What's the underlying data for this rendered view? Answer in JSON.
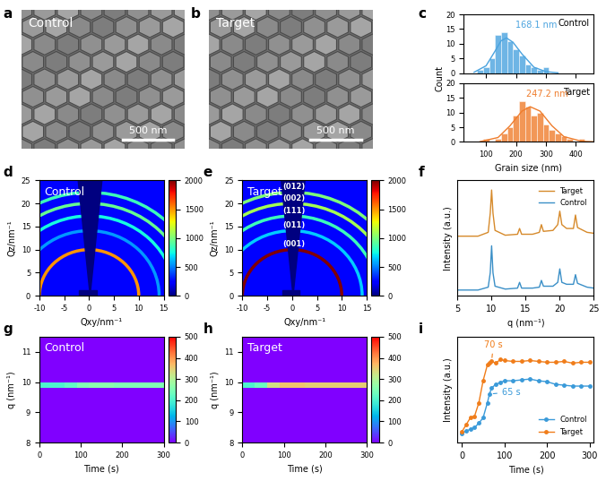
{
  "chart_data": [
    {
      "panel_label": "a",
      "type": "image",
      "title": "Control",
      "scale_bar": "500 nm"
    },
    {
      "panel_label": "b",
      "type": "image",
      "title": "Target",
      "scale_bar": "500 nm"
    },
    {
      "panel_label": "c",
      "type": "histogram",
      "xlabel": "Grain size (nm)",
      "ylabel": "Count",
      "xlim": [
        25,
        460
      ],
      "xticks": [
        100,
        200,
        300,
        400
      ],
      "ylim": [
        0,
        20
      ],
      "yticks": [
        0,
        5,
        10,
        15,
        20
      ],
      "series": [
        {
          "name": "Control",
          "color": "#4aa3df",
          "annotation": "168.1 nm",
          "bins": [
            70,
            90,
            110,
            130,
            150,
            170,
            190,
            210,
            230,
            250,
            270,
            290,
            310
          ],
          "counts": [
            1,
            2,
            5,
            13,
            14,
            11,
            8,
            6,
            3,
            2,
            1,
            2
          ],
          "fit": {
            "x": [
              60,
              100,
              130,
              150,
              168.1,
              190,
              220,
              260,
              300,
              340
            ],
            "y": [
              0.3,
              2.5,
              7.5,
              11,
              12,
              10.5,
              6.5,
              2,
              0.5,
              0.1
            ]
          }
        },
        {
          "name": "Target",
          "color": "#ef7d2d",
          "annotation": "247.2 nm",
          "bins": [
            90,
            110,
            130,
            150,
            170,
            190,
            210,
            230,
            250,
            270,
            290,
            310,
            330,
            350,
            370,
            390,
            410,
            430
          ],
          "counts": [
            1,
            0,
            1,
            3,
            5,
            9,
            14,
            12,
            9,
            10,
            6,
            4,
            3,
            2,
            1,
            0,
            1
          ],
          "fit": {
            "x": [
              80,
              140,
              180,
              220,
              247.2,
              280,
              320,
              360,
              420,
              460
            ],
            "y": [
              0.1,
              1.5,
              5.5,
              10.5,
              12,
              10.5,
              5.5,
              1.8,
              0.2,
              0.05
            ]
          }
        }
      ]
    },
    {
      "panel_label": "d",
      "type": "giwaxs",
      "title": "Control",
      "xlabel": "Qxy/nm⁻¹",
      "ylabel": "Qz/nm⁻¹",
      "xlim": [
        -10,
        15
      ],
      "xticks": [
        -10,
        -5,
        0,
        5,
        10,
        15
      ],
      "ylim": [
        0,
        25
      ],
      "yticks": [
        0,
        5,
        10,
        15,
        20,
        25
      ],
      "background": 250,
      "data_labels": false,
      "colorbar": {
        "range": [
          0,
          2000
        ],
        "ticks": [
          0,
          500,
          1000,
          1500,
          2000
        ]
      },
      "rings": [
        {
          "q": 10.0,
          "intensity": 1500
        },
        {
          "q": 14.1,
          "intensity": 550
        },
        {
          "q": 17.3,
          "intensity": 750
        },
        {
          "q": 20.0,
          "intensity": 950
        },
        {
          "q": 22.4,
          "intensity": 850
        }
      ]
    },
    {
      "panel_label": "e",
      "type": "giwaxs",
      "title": "Target",
      "xlabel": "Qxy/nm⁻¹",
      "ylabel": "Qz/nm⁻¹",
      "xlim": [
        -10,
        15
      ],
      "xticks": [
        -10,
        -5,
        0,
        5,
        10,
        15
      ],
      "ylim": [
        0,
        25
      ],
      "yticks": [
        0,
        5,
        10,
        15,
        20,
        25
      ],
      "background": 250,
      "data_labels": true,
      "colorbar": {
        "range": [
          0,
          2000
        ],
        "ticks": [
          0,
          500,
          1000,
          1500,
          2000
        ]
      },
      "rings": [
        {
          "label": "(001)",
          "q": 10.0,
          "intensity": 2000
        },
        {
          "label": "(011)",
          "q": 14.1,
          "intensity": 650
        },
        {
          "label": "(111)",
          "q": 17.3,
          "intensity": 850
        },
        {
          "label": "(002)",
          "q": 20.0,
          "intensity": 1100
        },
        {
          "label": "(012)",
          "q": 22.4,
          "intensity": 1000
        }
      ]
    },
    {
      "panel_label": "f",
      "type": "line",
      "xlabel": "q (nm⁻¹)",
      "ylabel": "Intensity (a.u.)",
      "xlim": [
        5,
        25
      ],
      "xticks": [
        5,
        10,
        15,
        20,
        25
      ],
      "ylim": [
        0,
        6
      ],
      "tick_labels": "x",
      "legend": "upper right",
      "x": [
        5,
        8,
        9.5,
        9.8,
        10,
        10.2,
        10.5,
        12,
        13.8,
        14.1,
        14.4,
        16,
        17,
        17.3,
        17.6,
        19,
        19.7,
        20,
        20.3,
        21,
        22,
        22.3,
        22.6,
        24,
        25
      ],
      "series": [
        {
          "name": "Control",
          "color": "#3a8fc7",
          "values": [
            0.3,
            0.3,
            0.45,
            1.2,
            2.6,
            1.2,
            0.5,
            0.35,
            0.4,
            0.7,
            0.4,
            0.4,
            0.45,
            0.8,
            0.5,
            0.5,
            0.7,
            1.4,
            0.7,
            0.6,
            0.6,
            1.1,
            0.65,
            0.45,
            0.4
          ]
        },
        {
          "name": "Target",
          "color": "#d68a2b",
          "values": [
            3.1,
            3.1,
            3.3,
            4.3,
            5.5,
            4.3,
            3.4,
            3.15,
            3.2,
            3.5,
            3.2,
            3.2,
            3.3,
            3.7,
            3.35,
            3.4,
            3.7,
            4.4,
            3.7,
            3.5,
            3.5,
            4.2,
            3.55,
            3.3,
            3.25
          ]
        }
      ]
    },
    {
      "panel_label": "g",
      "type": "heatmap",
      "title": "Control",
      "xlabel": "Time (s)",
      "ylabel": "q (nm⁻¹)",
      "xlim": [
        0,
        300
      ],
      "xticks": [
        0,
        100,
        200,
        300
      ],
      "ylim": [
        8,
        11.5
      ],
      "yticks": [
        8,
        9,
        10,
        11
      ],
      "x_edges": [
        0,
        30,
        60,
        90,
        120,
        150,
        180,
        210,
        240,
        270,
        300
      ],
      "y_edges": [
        8.0,
        9.8,
        10.0,
        11.5
      ],
      "cells": [
        [
          0,
          0,
          0,
          0,
          0,
          0,
          0,
          0,
          0,
          0
        ],
        [
          200,
          200,
          220,
          250,
          260,
          260,
          250,
          250,
          250,
          250
        ],
        [
          0,
          0,
          0,
          0,
          0,
          0,
          0,
          0,
          0,
          0
        ]
      ],
      "colorbar": {
        "range": [
          0,
          500
        ],
        "ticks": [
          0,
          100,
          200,
          300,
          400,
          500
        ]
      }
    },
    {
      "panel_label": "h",
      "type": "heatmap",
      "title": "Target",
      "xlabel": "Time (s)",
      "ylabel": "q (nm⁻¹)",
      "xlim": [
        0,
        300
      ],
      "xticks": [
        0,
        100,
        200,
        300
      ],
      "ylim": [
        8,
        11.5
      ],
      "yticks": [
        8,
        9,
        10,
        11
      ],
      "x_edges": [
        0,
        30,
        60,
        90,
        120,
        150,
        180,
        210,
        240,
        270,
        300
      ],
      "y_edges": [
        8.0,
        9.8,
        10.0,
        11.5
      ],
      "cells": [
        [
          0,
          0,
          0,
          0,
          0,
          0,
          0,
          0,
          0,
          0
        ],
        [
          200,
          230,
          330,
          360,
          360,
          350,
          350,
          350,
          350,
          350
        ],
        [
          0,
          0,
          0,
          0,
          0,
          0,
          0,
          0,
          0,
          0
        ]
      ],
      "colorbar": {
        "range": [
          0,
          500
        ],
        "ticks": [
          0,
          100,
          200,
          300,
          400,
          500
        ]
      }
    },
    {
      "panel_label": "i",
      "type": "line",
      "xlabel": "Time (s)",
      "ylabel": "Intensity (a.u.)",
      "xlim": [
        -10,
        310
      ],
      "xticks": [
        0,
        100,
        200,
        300
      ],
      "ylim": [
        0,
        1.2
      ],
      "tick_labels": "x",
      "legend": "lower right",
      "x": [
        0,
        10,
        20,
        30,
        40,
        50,
        60,
        65,
        70,
        80,
        90,
        100,
        120,
        140,
        160,
        180,
        200,
        220,
        240,
        260,
        280,
        300
      ],
      "series": [
        {
          "name": "Control",
          "color": "#3a9ad9",
          "marker": "o",
          "values": [
            0.1,
            0.13,
            0.15,
            0.17,
            0.22,
            0.28,
            0.45,
            0.55,
            0.62,
            0.66,
            0.68,
            0.7,
            0.7,
            0.71,
            0.72,
            0.7,
            0.69,
            0.66,
            0.65,
            0.64,
            0.64,
            0.64
          ]
        },
        {
          "name": "Target",
          "color": "#f07d1a",
          "marker": "o",
          "values": [
            0.12,
            0.2,
            0.28,
            0.3,
            0.45,
            0.7,
            0.88,
            0.9,
            0.92,
            0.9,
            0.94,
            0.93,
            0.92,
            0.92,
            0.93,
            0.92,
            0.91,
            0.91,
            0.92,
            0.9,
            0.91,
            0.91
          ]
        }
      ],
      "annotations": [
        {
          "text": "70 s",
          "x": 70,
          "series": "Target"
        },
        {
          "text": "65 s",
          "x": 65,
          "series": "Control"
        }
      ]
    }
  ]
}
